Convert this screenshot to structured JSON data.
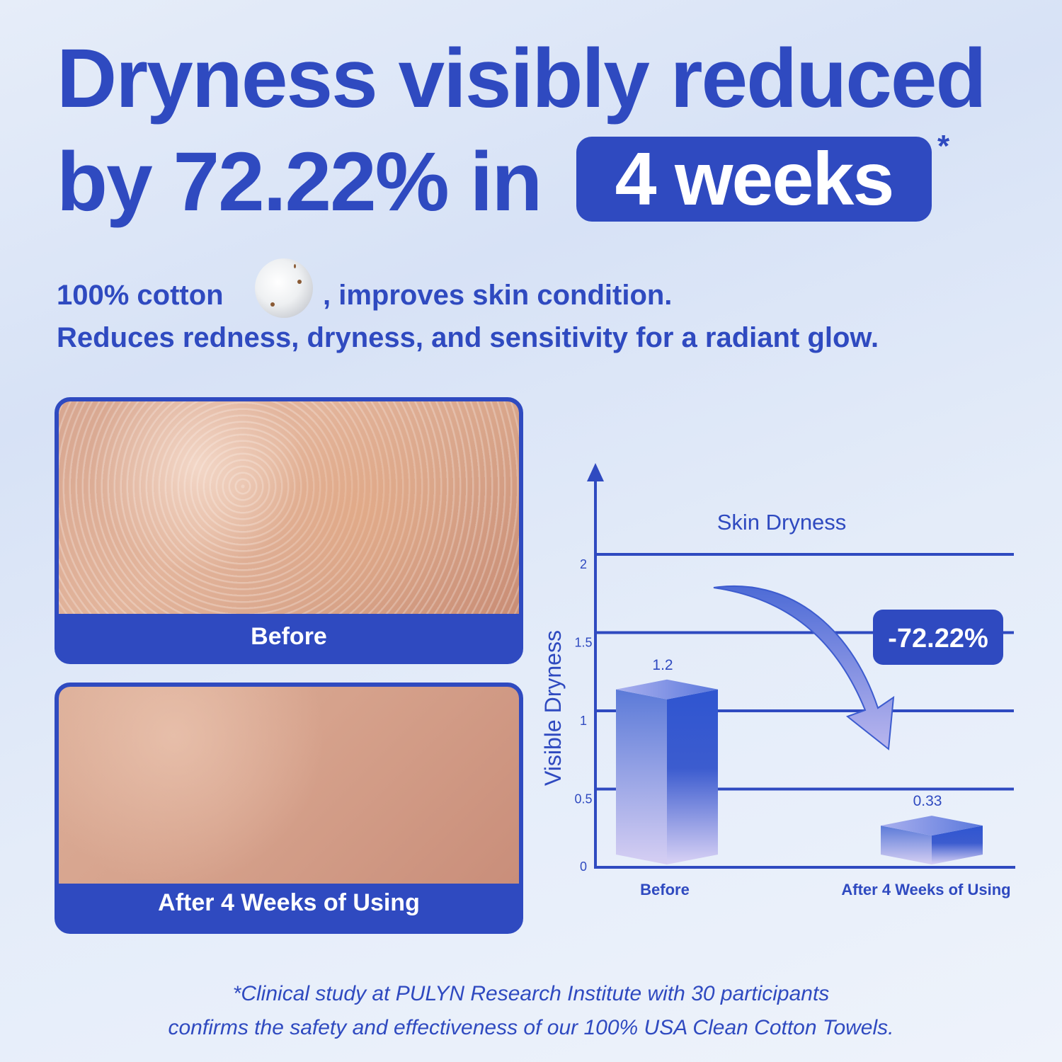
{
  "headline": {
    "line1": "Dryness visibly reduced",
    "line2": "by 72.22% in",
    "highlight": "4 weeks",
    "asterisk": "*"
  },
  "subheadline": {
    "line1_before_icon": "100% cotton",
    "icon": "cotton-boll-icon",
    "line1_after_icon": ", improves skin condition.",
    "line2": "Reduces redness, dryness, and sensitivity for a radiant glow."
  },
  "photos": [
    {
      "caption": "Before"
    },
    {
      "caption": "After 4 Weeks of Using"
    }
  ],
  "chart_data": {
    "type": "bar",
    "title": "Skin Dryness",
    "xlabel": "",
    "ylabel": "Visible Dryness",
    "categories": [
      "Before",
      "After 4 Weeks of Using"
    ],
    "values": [
      1.2,
      0.33
    ],
    "data_labels": [
      "1.2",
      "0.33"
    ],
    "yticks": [
      "0",
      "0.5",
      "1",
      "1.5",
      "2"
    ],
    "ylim": [
      0,
      2.5
    ],
    "grid": true,
    "annotation": "-72.22%"
  },
  "colors": {
    "brand": "#2f4ac0",
    "bar_top": "#2f55d0",
    "bar_bottom": "#d4cdf3"
  },
  "footnote": {
    "line1": "*Clinical study at PULYN Research Institute with 30 participants",
    "line2": "confirms the safety and effectiveness of our 100% USA Clean Cotton Towels."
  }
}
